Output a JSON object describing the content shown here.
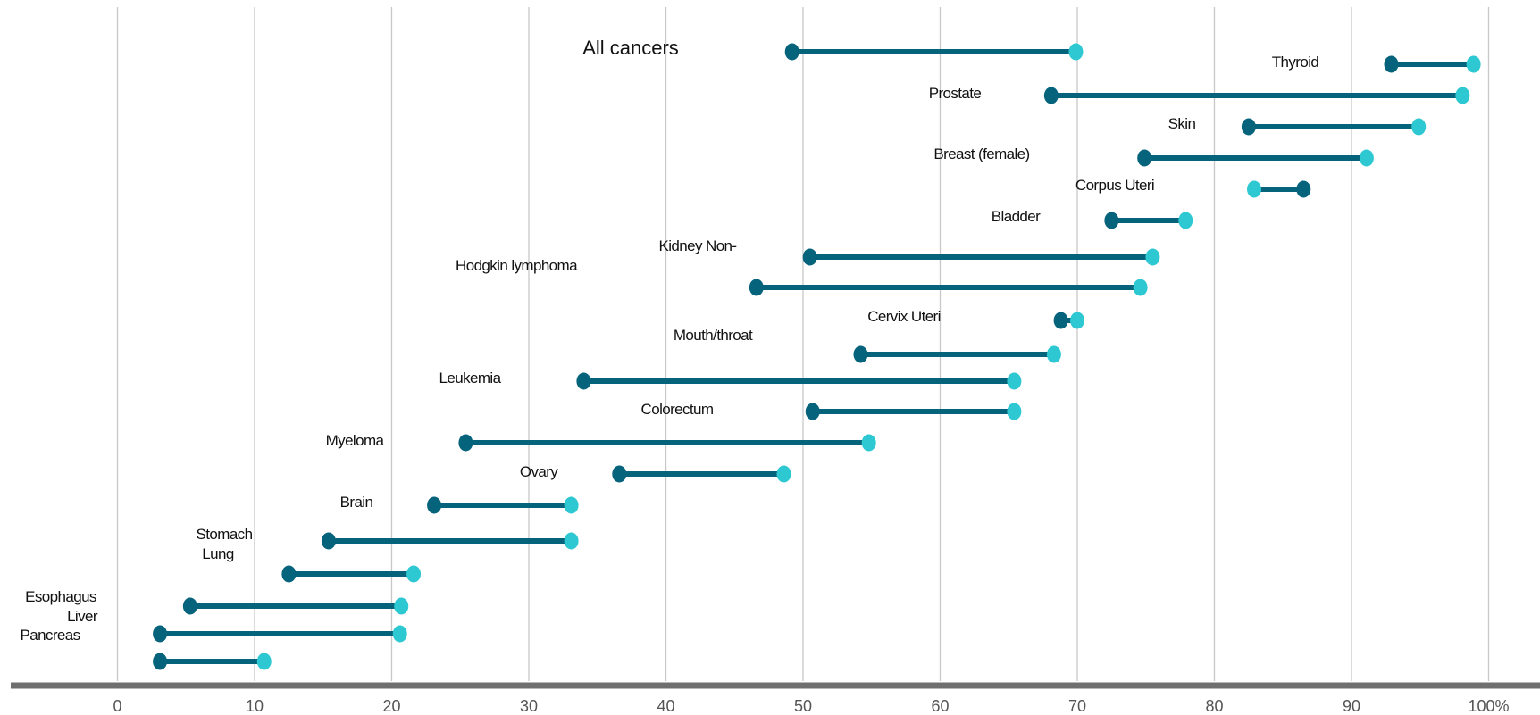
{
  "chart_data": {
    "type": "dumbbell",
    "xlim": [
      0,
      100
    ],
    "x_ticks": [
      "0",
      "10",
      "20",
      "30",
      "40",
      "50",
      "60",
      "70",
      "80",
      "90",
      "100%"
    ],
    "grid": true,
    "colors": {
      "start": "#06637c",
      "end": "#2ec8d2",
      "grid": "#c8c8c8",
      "axis": "#6f6f6f"
    },
    "series": [
      {
        "label": "All cancers",
        "start": 49.2,
        "end": 69.9
      },
      {
        "label": "Thyroid",
        "start": 92.9,
        "end": 98.9
      },
      {
        "label": "Prostate",
        "start": 68.1,
        "end": 98.1
      },
      {
        "label": "Skin",
        "start": 82.5,
        "end": 94.9
      },
      {
        "label": "Breast (female)",
        "start": 74.9,
        "end": 91.1
      },
      {
        "label": "Corpus Uteri",
        "start": 86.5,
        "end": 82.9
      },
      {
        "label": "Bladder",
        "start": 72.5,
        "end": 77.9
      },
      {
        "label": "Kidney Non-",
        "start": 50.5,
        "end": 75.5
      },
      {
        "label": "Hodgkin lymphoma",
        "start": 46.6,
        "end": 74.6
      },
      {
        "label": "Cervix Uteri",
        "start": 68.8,
        "end": 70.0
      },
      {
        "label": "Mouth/throat",
        "start": 54.2,
        "end": 68.3
      },
      {
        "label": "Leukemia",
        "start": 34.0,
        "end": 65.4
      },
      {
        "label": "Colorectum",
        "start": 50.7,
        "end": 65.4
      },
      {
        "label": "Myeloma",
        "start": 25.4,
        "end": 54.8
      },
      {
        "label": "Ovary",
        "start": 36.6,
        "end": 48.6
      },
      {
        "label": "Brain",
        "start": 23.1,
        "end": 33.1
      },
      {
        "label": "Stomach",
        "start": 15.4,
        "end": 33.1
      },
      {
        "label": "Lung",
        "start": 12.5,
        "end": 21.6
      },
      {
        "label": "Esophagus",
        "start": 5.3,
        "end": 20.7
      },
      {
        "label": "Liver",
        "start": 3.1,
        "end": 20.6
      },
      {
        "label": "Pancreas",
        "start": 3.1,
        "end": 10.7
      }
    ]
  }
}
